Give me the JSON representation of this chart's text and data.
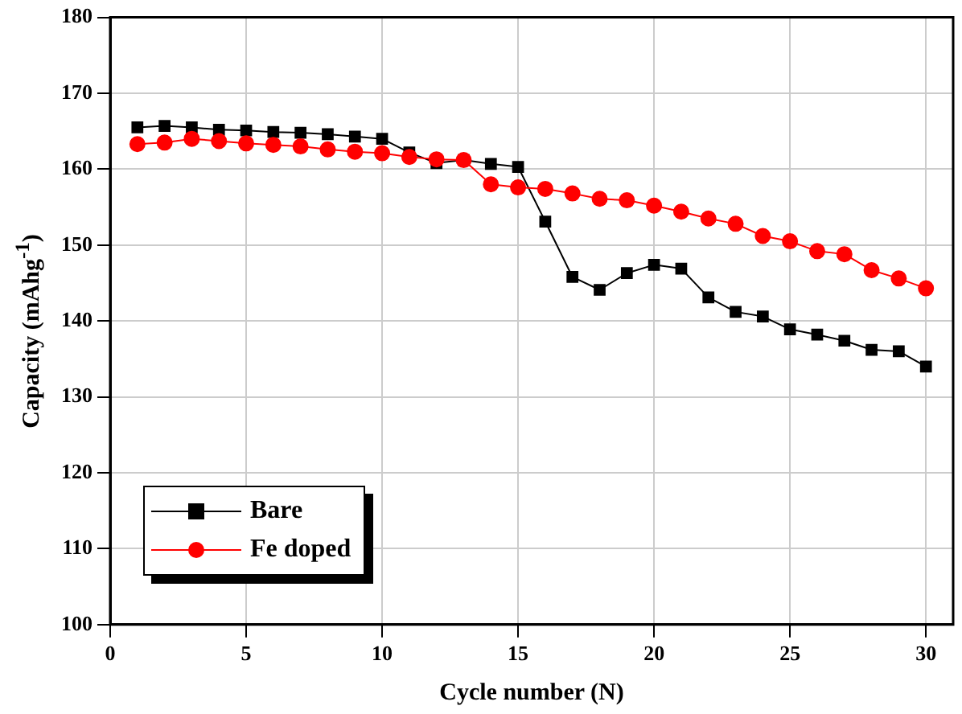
{
  "chart_data": {
    "type": "line",
    "xlabel": "Cycle number (N)",
    "ylabel": "Capacity (mAhg$^{-1}$)",
    "x": [
      1,
      2,
      3,
      4,
      5,
      6,
      7,
      8,
      9,
      10,
      11,
      12,
      13,
      14,
      15,
      16,
      17,
      18,
      19,
      20,
      21,
      22,
      23,
      24,
      25,
      26,
      27,
      28,
      29,
      30
    ],
    "series": [
      {
        "name": "Bare",
        "color": "#000000",
        "marker": "square",
        "values": [
          165.5,
          165.7,
          165.5,
          165.2,
          165.1,
          164.9,
          164.8,
          164.6,
          164.3,
          164.0,
          162.2,
          160.8,
          161.2,
          160.7,
          160.3,
          153.1,
          145.8,
          144.1,
          146.3,
          147.4,
          146.9,
          143.1,
          141.2,
          140.6,
          138.9,
          138.2,
          137.4,
          136.2,
          136.0,
          134.0
        ]
      },
      {
        "name": "Fe doped",
        "color": "#ff0000",
        "marker": "circle",
        "values": [
          163.3,
          163.5,
          164.0,
          163.7,
          163.4,
          163.2,
          163.0,
          162.6,
          162.3,
          162.1,
          161.6,
          161.3,
          161.2,
          158.0,
          157.6,
          157.4,
          156.8,
          156.1,
          155.9,
          155.2,
          154.4,
          153.5,
          152.8,
          151.2,
          150.5,
          149.2,
          148.8,
          146.7,
          145.6,
          144.3
        ]
      }
    ],
    "xlim": [
      0,
      31
    ],
    "xticks": [
      0,
      5,
      10,
      15,
      20,
      25,
      30
    ],
    "ylim": [
      100,
      180
    ],
    "yticks": [
      100,
      110,
      120,
      130,
      140,
      150,
      160,
      170,
      180
    ],
    "grid": true,
    "legend": "bottom left",
    "line_style": "solid"
  }
}
